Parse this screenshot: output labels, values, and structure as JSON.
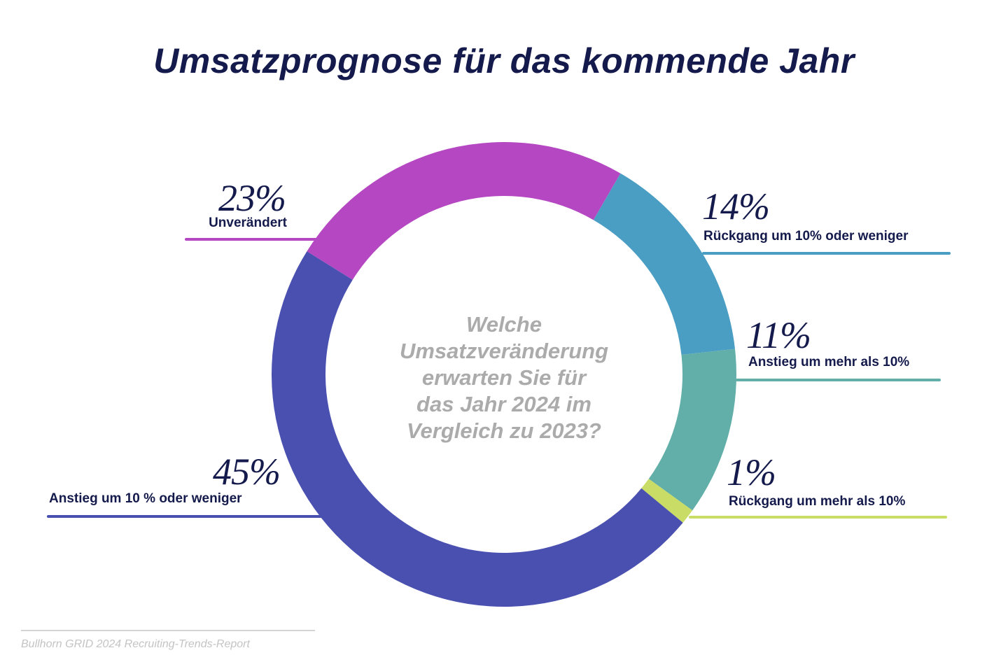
{
  "chart_data": {
    "type": "pie",
    "variant": "donut",
    "title": "Umsatzprognose für das kommende Jahr",
    "center_text": [
      "Welche",
      "Umsatzveränderung",
      "erwarten Sie für",
      "das Jahr 2024 im",
      "Vergleich zu 2023?"
    ],
    "slices": [
      {
        "label": "Unverändert",
        "value": 23,
        "value_label": "23%",
        "color": "#b548c2"
      },
      {
        "label": "Rückgang um 10% oder weniger",
        "value": 14,
        "value_label": "14%",
        "color": "#4a9dc3"
      },
      {
        "label": "Anstieg um mehr als 10%",
        "value": 11,
        "value_label": "11%",
        "color": "#62aea8"
      },
      {
        "label": "Rückgang um mehr als 10%",
        "value": 1,
        "value_label": "1%",
        "color": "#c9dd66"
      },
      {
        "label": "Anstieg um 10 % oder weniger",
        "value": 45,
        "value_label": "45%",
        "color": "#4a50b0"
      }
    ],
    "legend": "leader-line labels"
  },
  "source": "Bullhorn GRID 2024 Recruiting-Trends-Report"
}
